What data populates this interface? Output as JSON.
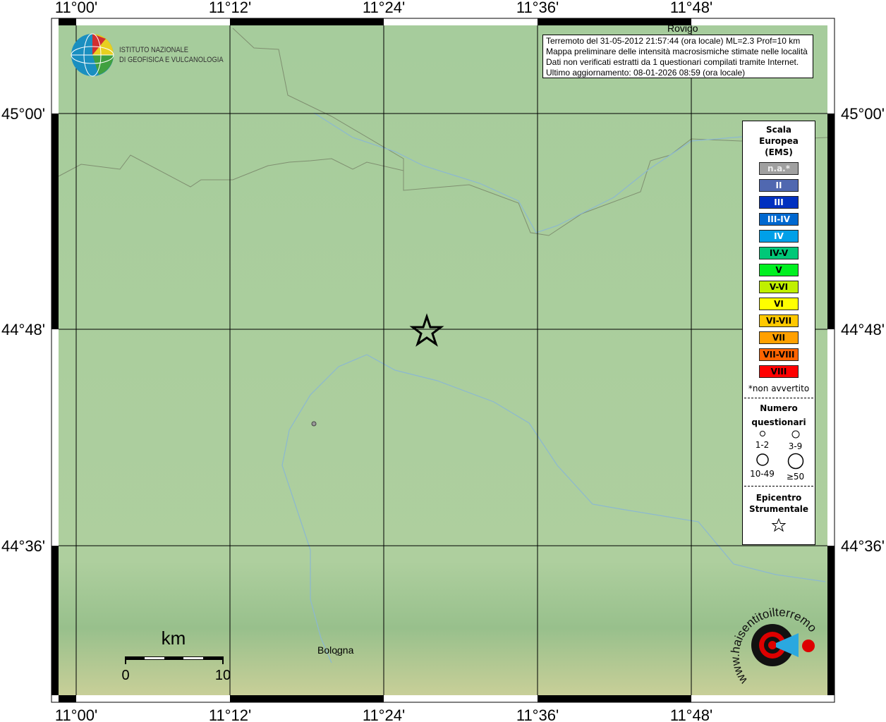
{
  "map": {
    "lon_ticks": [
      "11°00'",
      "11°12'",
      "11°24'",
      "11°36'",
      "11°48'"
    ],
    "lat_ticks": [
      "45°00'",
      "44°48'",
      "44°36'"
    ],
    "places": [
      "Bologna",
      "Rovigo"
    ],
    "scale_title": "km",
    "scale_labels": [
      "0",
      "10"
    ]
  },
  "info": {
    "lines": [
      "Terremoto del 31-05-2012 21:57:44 (ora locale) ML=2.3 Prof=10 km",
      "Mappa preliminare delle intensità macrosismiche stimate nelle località",
      "Dati non verificati estratti da 1 questionari compilati tramite Internet.",
      "Ultimo aggiornamento: 08-01-2026 08:59 (ora locale)"
    ]
  },
  "logo": {
    "line1": "ISTITUTO NAZIONALE",
    "line2": "DI GEOFISICA E VULCANOLOGIA",
    "site": "www.haisentitoilterremoto.it"
  },
  "legend": {
    "title": [
      "Scala",
      "Europea",
      "(EMS)"
    ],
    "classes": [
      {
        "label": "n.a.*",
        "color": "#a0a0a0",
        "text": "#eee"
      },
      {
        "label": "II",
        "color": "#5068b0",
        "text": "#fff"
      },
      {
        "label": "III",
        "color": "#0030c0",
        "text": "#fff"
      },
      {
        "label": "III-IV",
        "color": "#0068d0",
        "text": "#fff"
      },
      {
        "label": "IV",
        "color": "#00a0e8",
        "text": "#fff"
      },
      {
        "label": "IV-V",
        "color": "#00c878",
        "text": "#000"
      },
      {
        "label": "V",
        "color": "#00f020",
        "text": "#000"
      },
      {
        "label": "V-VI",
        "color": "#c0f000",
        "text": "#000"
      },
      {
        "label": "VI",
        "color": "#ffff00",
        "text": "#000"
      },
      {
        "label": "VI-VII",
        "color": "#ffc800",
        "text": "#000"
      },
      {
        "label": "VII",
        "color": "#ffa000",
        "text": "#000"
      },
      {
        "label": "VII-VIII",
        "color": "#ff6400",
        "text": "#000"
      },
      {
        "label": "VIII",
        "color": "#ff0000",
        "text": "#000"
      }
    ],
    "note": "*non avvertito",
    "count_title": [
      "Numero",
      "questionari"
    ],
    "counts": [
      "1-2",
      "3-9",
      "10-49",
      "≥50"
    ],
    "epicenter_title": [
      "Epicentro",
      "Strumentale"
    ]
  }
}
